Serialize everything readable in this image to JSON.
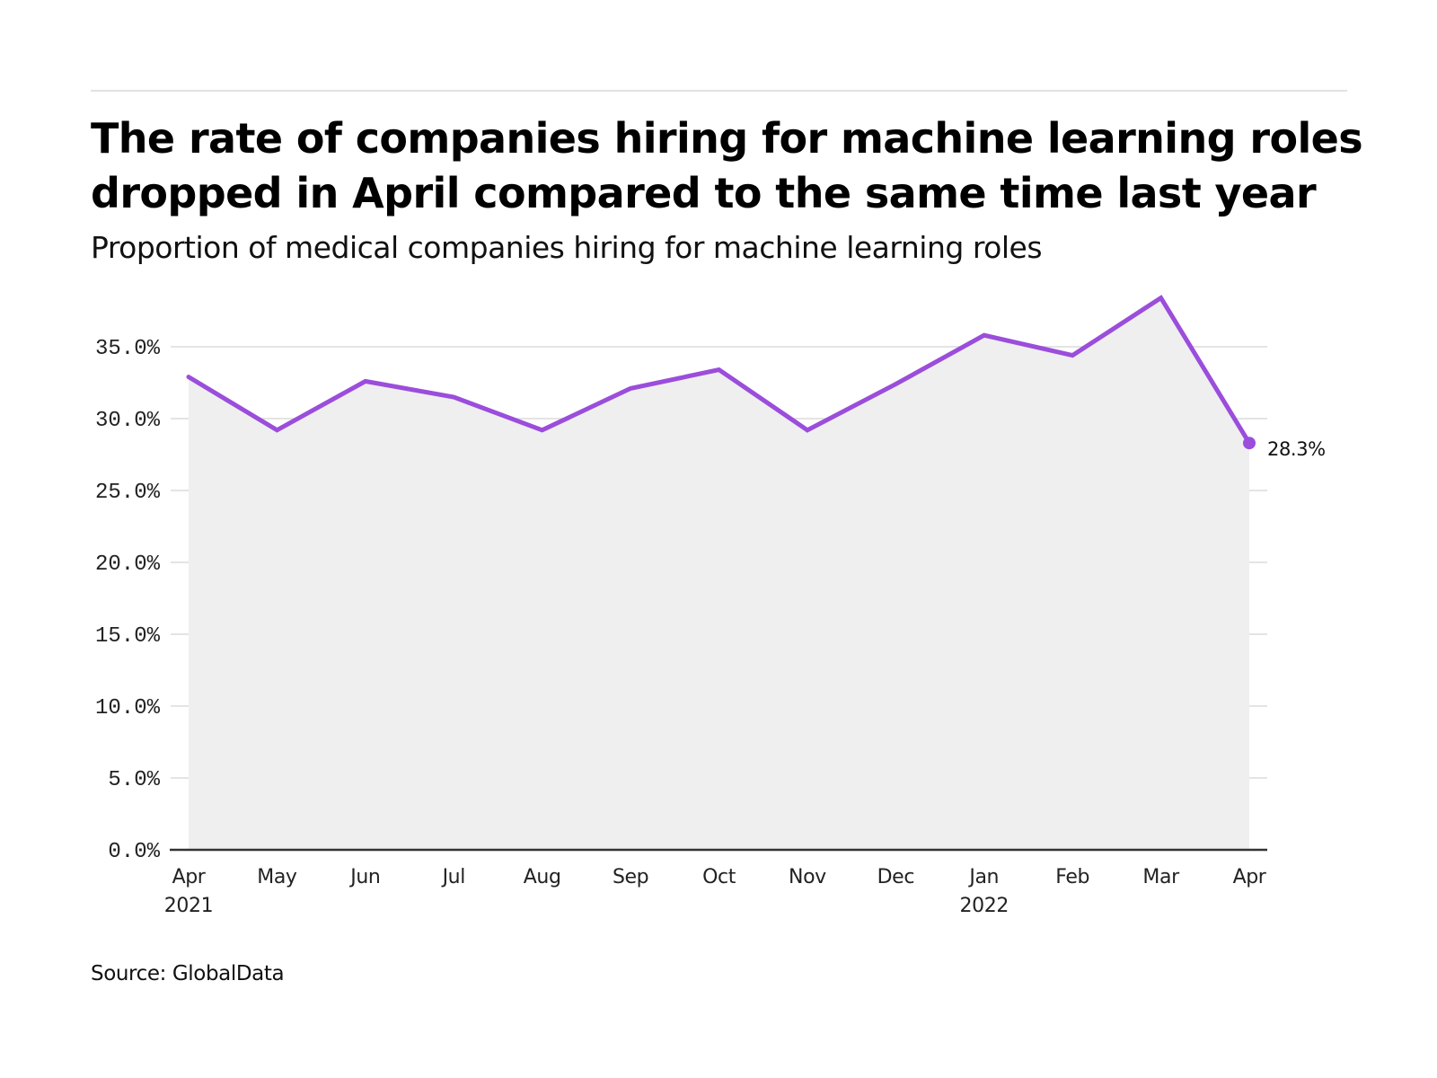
{
  "header": {
    "title_line1": "The rate of companies hiring for machine learning roles",
    "title_line2": "dropped in April compared to the same time last year",
    "subtitle": "Proportion of medical companies hiring for machine learning roles"
  },
  "footer": {
    "source": "Source: GlobalData"
  },
  "colors": {
    "line": "#9b4ddb",
    "fill": "#efefef",
    "grid": "#e4e4e4",
    "axis": "#333333",
    "rule": "#e2e2e2"
  },
  "chart_data": {
    "type": "area",
    "title": "The rate of companies hiring for machine learning roles dropped in April compared to the same time last year",
    "subtitle": "Proportion of medical companies hiring for machine learning roles",
    "xlabel": "",
    "ylabel": "",
    "categories": [
      "Apr",
      "May",
      "Jun",
      "Jul",
      "Aug",
      "Sep",
      "Oct",
      "Nov",
      "Dec",
      "Jan",
      "Feb",
      "Mar",
      "Apr"
    ],
    "year_labels": [
      {
        "index": 0,
        "label": "2021"
      },
      {
        "index": 9,
        "label": "2022"
      }
    ],
    "series": [
      {
        "name": "Proportion of medical companies hiring for machine learning roles",
        "values": [
          32.9,
          29.2,
          32.6,
          31.5,
          29.2,
          32.1,
          33.4,
          29.2,
          32.4,
          35.8,
          34.4,
          38.4,
          28.3
        ]
      }
    ],
    "ylim": [
      0,
      38.5
    ],
    "yticks": [
      0,
      5,
      10,
      15,
      20,
      25,
      30,
      35
    ],
    "ytick_labels": [
      "0.0%",
      "5.0%",
      "10.0%",
      "15.0%",
      "20.0%",
      "25.0%",
      "30.0%",
      "35.0%"
    ],
    "grid": true,
    "legend": "none",
    "annotations": [
      {
        "index": 12,
        "label": "28.3%"
      }
    ]
  }
}
